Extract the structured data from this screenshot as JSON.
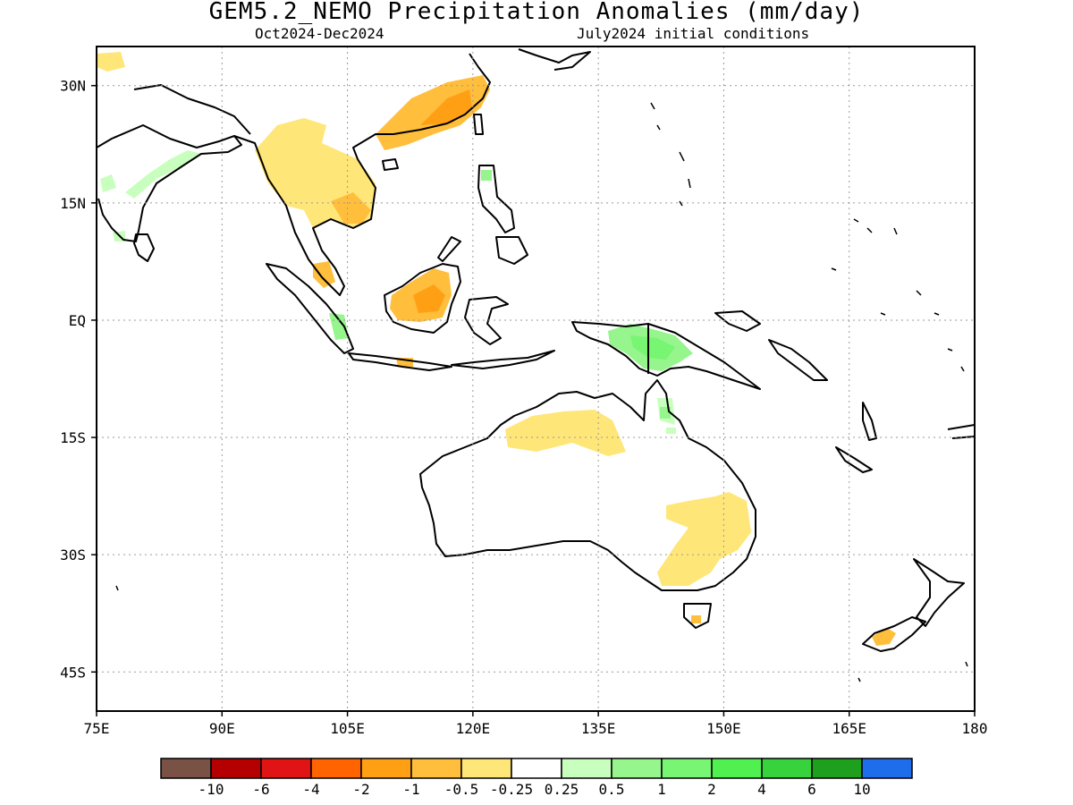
{
  "title": "GEM5.2_NEMO Precipitation Anomalies (mm/day)",
  "period": "Oct2024-Dec2024",
  "init": "July2024 initial conditions",
  "map": {
    "lon_range": [
      75,
      180
    ],
    "lat_range": [
      -50,
      35
    ],
    "x_ticks": [
      {
        "lon": 75,
        "label": "75E"
      },
      {
        "lon": 90,
        "label": "90E"
      },
      {
        "lon": 105,
        "label": "105E"
      },
      {
        "lon": 120,
        "label": "120E"
      },
      {
        "lon": 135,
        "label": "135E"
      },
      {
        "lon": 150,
        "label": "150E"
      },
      {
        "lon": 165,
        "label": "165E"
      },
      {
        "lon": 180,
        "label": "180"
      }
    ],
    "y_ticks": [
      {
        "lat": 30,
        "label": "30N"
      },
      {
        "lat": 15,
        "label": "15N"
      },
      {
        "lat": 0,
        "label": "EQ"
      },
      {
        "lat": -15,
        "label": "15S"
      },
      {
        "lat": -30,
        "label": "30S"
      },
      {
        "lat": -45,
        "label": "45S"
      }
    ],
    "grid": true
  },
  "colorbar": {
    "colors": [
      "#7a5245",
      "#b40000",
      "#e01414",
      "#ff6400",
      "#ffa014",
      "#ffbe3c",
      "#ffe678",
      "#ffffff",
      "#c8ffbe",
      "#96f58c",
      "#78f573",
      "#50f050",
      "#37d23c",
      "#1ea01e",
      "#1e6eeb"
    ],
    "labels": [
      "-10",
      "-6",
      "-4",
      "-2",
      "-1",
      "-0.5",
      "-0.25",
      "0.25",
      "0.5",
      "1",
      "2",
      "4",
      "6",
      "10"
    ]
  }
}
